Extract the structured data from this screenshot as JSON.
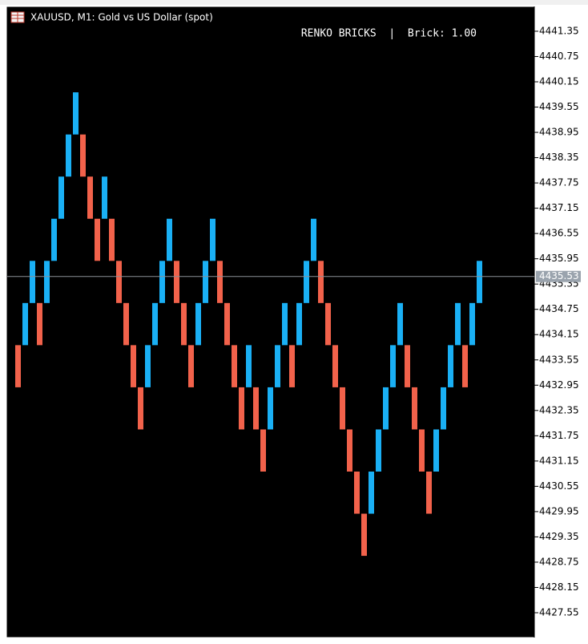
{
  "chart_data": {
    "type": "renko",
    "title": "XAUUSD, M1:  Gold vs US Dollar (spot)",
    "annotation": "RENKO BRICKS  |  Brick: 1.00",
    "current_price": 4435.53,
    "up_color": "#1ab0f5",
    "down_color": "#f2624b",
    "open": [
      4433.9,
      4433.9,
      4434.9,
      4434.9,
      4434.9,
      4435.9,
      4436.9,
      4437.9,
      4438.9,
      4438.9,
      4437.9,
      4436.9,
      4436.9,
      4436.9,
      4435.9,
      4434.9,
      4433.9,
      4432.9,
      4432.9,
      4433.9,
      4434.9,
      4435.9,
      4435.9,
      4434.9,
      4433.9,
      4433.9,
      4434.9,
      4435.9,
      4435.9,
      4434.9,
      4433.9,
      4432.9,
      4432.9,
      4432.9,
      4431.9,
      4431.9,
      4432.9,
      4433.9,
      4433.9,
      4433.9,
      4434.9,
      4435.9,
      4435.9,
      4434.9,
      4433.9,
      4432.9,
      4431.9,
      4430.9,
      4429.9,
      4429.9,
      4430.9,
      4431.9,
      4432.9,
      4433.9,
      4433.9,
      4432.9,
      4431.9,
      4430.9,
      4430.9,
      4431.9,
      4432.9,
      4433.9,
      4433.9,
      4433.9,
      4434.9
    ],
    "close": [
      4432.9,
      4434.9,
      4435.9,
      4433.9,
      4435.9,
      4436.9,
      4437.9,
      4438.9,
      4439.9,
      4437.9,
      4436.9,
      4435.9,
      4437.9,
      4435.9,
      4434.9,
      4433.9,
      4432.9,
      4431.9,
      4433.9,
      4434.9,
      4435.9,
      4436.9,
      4434.9,
      4433.9,
      4432.9,
      4434.9,
      4435.9,
      4436.9,
      4434.9,
      4433.9,
      4432.9,
      4431.9,
      4433.9,
      4431.9,
      4430.9,
      4432.9,
      4433.9,
      4434.9,
      4432.9,
      4434.9,
      4435.9,
      4436.9,
      4434.9,
      4433.9,
      4432.9,
      4431.9,
      4430.9,
      4429.9,
      4428.9,
      4430.9,
      4431.9,
      4432.9,
      4433.9,
      4434.9,
      4432.9,
      4431.9,
      4430.9,
      4429.9,
      4431.9,
      4432.9,
      4433.9,
      4434.9,
      4432.9,
      4434.9,
      4435.9
    ],
    "ylim": [
      4426.96,
      4441.92
    ],
    "yticks": [
      4441.35,
      4440.75,
      4440.15,
      4439.55,
      4438.95,
      4438.35,
      4437.75,
      4437.15,
      4436.55,
      4435.95,
      4435.35,
      4434.75,
      4434.15,
      4433.55,
      4432.95,
      4432.35,
      4431.75,
      4431.15,
      4430.55,
      4429.95,
      4429.35,
      4428.75,
      4428.15,
      4427.55
    ]
  }
}
